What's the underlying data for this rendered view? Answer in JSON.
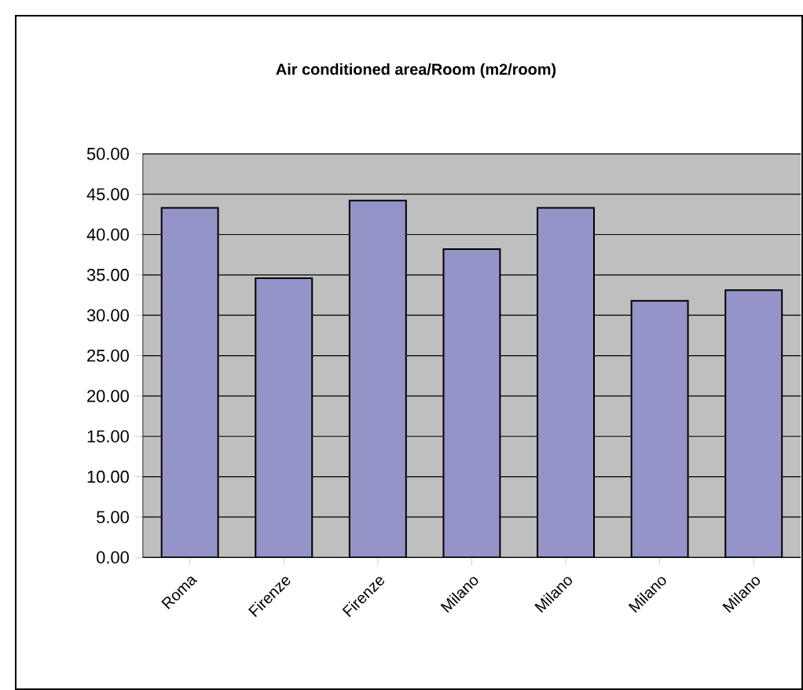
{
  "chart_data": {
    "type": "bar",
    "title": "Air conditioned area/Room  (m2/room)",
    "categories": [
      "Roma",
      "Firenze",
      "Firenze",
      "Milano",
      "Milano",
      "Milano",
      "Milano"
    ],
    "values": [
      43.3,
      34.6,
      44.2,
      38.2,
      43.3,
      31.8,
      33.1
    ],
    "color": "#9494c8",
    "ylim": [
      0,
      50
    ],
    "yticks": [
      {
        "value": 0,
        "label": "0.00"
      },
      {
        "value": 5,
        "label": "5.00"
      },
      {
        "value": 10,
        "label": "10.00"
      },
      {
        "value": 15,
        "label": "15.00"
      },
      {
        "value": 20,
        "label": "20.00"
      },
      {
        "value": 25,
        "label": "25.00"
      },
      {
        "value": 30,
        "label": "30.00"
      },
      {
        "value": 35,
        "label": "35.00"
      },
      {
        "value": 40,
        "label": "40.00"
      },
      {
        "value": 45,
        "label": "45.00"
      },
      {
        "value": 50,
        "label": "50.00"
      }
    ],
    "grid": "y"
  }
}
